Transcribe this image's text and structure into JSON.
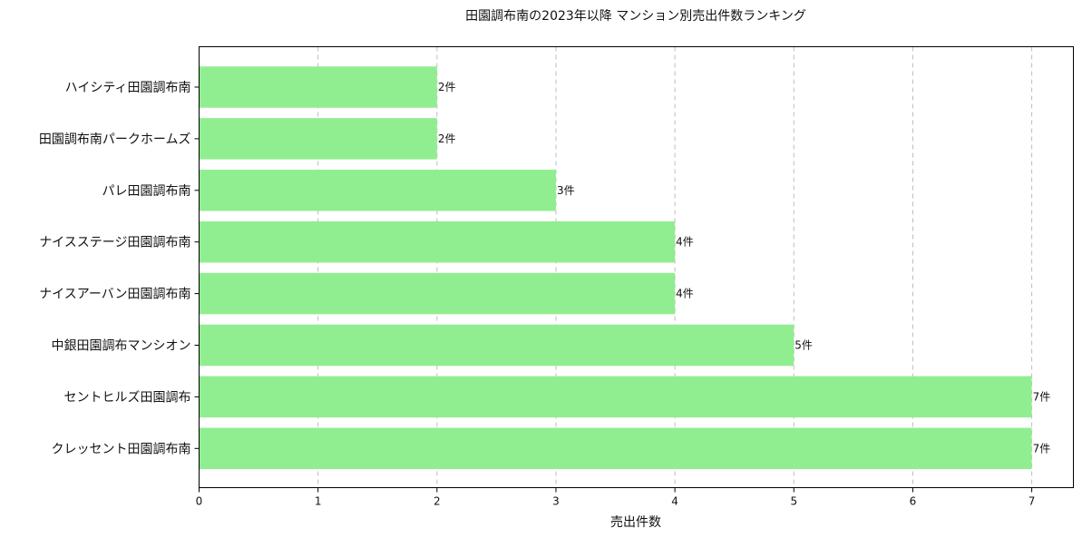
{
  "chart_data": {
    "type": "bar",
    "orientation": "horizontal",
    "title": "田園調布南の2023年以降 マンション別売出件数ランキング",
    "xlabel": "売出件数",
    "ylabel": "",
    "xlim": [
      0,
      7.35
    ],
    "xticks": [
      "0",
      "1",
      "2",
      "3",
      "4",
      "5",
      "6",
      "7"
    ],
    "grid": "x-dashed",
    "bar_color": "#90ee90",
    "label_suffix": "件",
    "categories": [
      "ハイシティ田園調布南",
      "田園調布南パークホームズ",
      "パレ田園調布南",
      "ナイスステージ田園調布南",
      "ナイスアーバン田園調布南",
      "中銀田園調布マンシオン",
      "セントヒルズ田園調布",
      "クレッセント田園調布南"
    ],
    "values": [
      2,
      2,
      3,
      4,
      4,
      5,
      7,
      7
    ],
    "data_labels": [
      "2件",
      "2件",
      "3件",
      "4件",
      "4件",
      "5件",
      "7件",
      "7件"
    ]
  }
}
